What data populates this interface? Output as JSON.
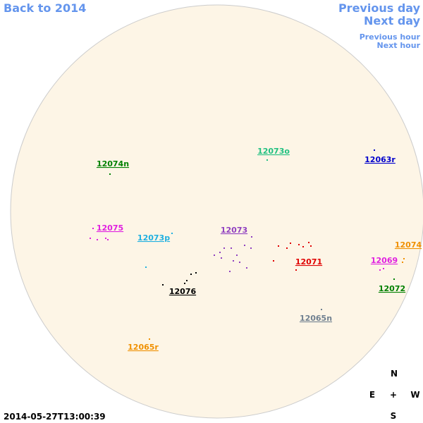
{
  "navigation": {
    "back": "Back to 2014",
    "previous_day": "Previous day",
    "next_day": "Next day",
    "previous_hour": "Previous hour",
    "next_hour": "Next hour"
  },
  "regions": [
    {
      "label": "12074n",
      "color": "#008000"
    },
    {
      "label": "12073o",
      "color": "#20c080"
    },
    {
      "label": "12063r",
      "color": "#0000cc"
    },
    {
      "label": "12075",
      "color": "#e020e0"
    },
    {
      "label": "12073p",
      "color": "#20b0e0"
    },
    {
      "label": "12073",
      "color": "#9040c0"
    },
    {
      "label": "12071",
      "color": "#e00000"
    },
    {
      "label": "12074",
      "color": "#f09000"
    },
    {
      "label": "12069",
      "color": "#e020e0"
    },
    {
      "label": "12072",
      "color": "#008000"
    },
    {
      "label": "12076",
      "color": "#000000"
    },
    {
      "label": "12065n",
      "color": "#708090"
    },
    {
      "label": "12065r",
      "color": "#f09000"
    }
  ],
  "timestamp": "2014-05-27T13:00:39",
  "compass": {
    "north": "N",
    "east": "E",
    "center": "+",
    "west": "W",
    "south": "S"
  }
}
